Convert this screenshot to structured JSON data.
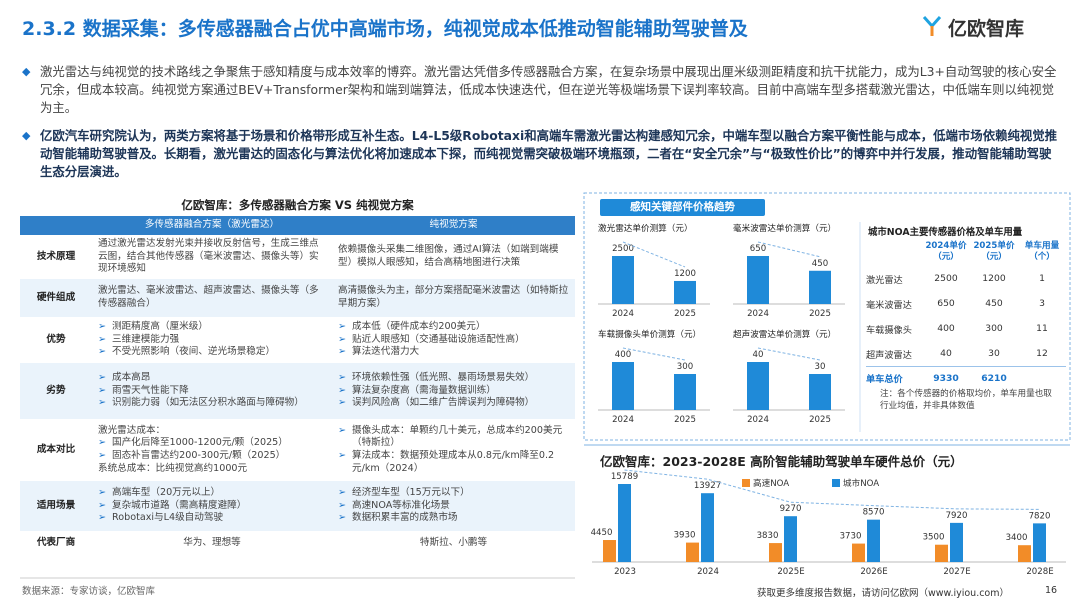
{
  "header": {
    "title": "2.3.2 数据采集：多传感器融合占优中高端市场，纯视觉成本低推动智能辅助驾驶普及",
    "logo": "亿欧智库"
  },
  "bullets": [
    "激光雷达与纯视觉的技术路线之争聚焦于感知精度与成本效率的博弈。激光雷达凭借多传感器融合方案，在复杂场景中展现出厘米级测距精度和抗干扰能力，成为L3+自动驾驶的核心安全冗余，但成本较高。纯视觉方案通过BEV+Transformer架构和端到端算法，低成本快速迭代，但在逆光等极端场景下误判率较高。目前中高端车型多搭载激光雷达，中低端车则以纯视觉为主。",
    "亿欧汽车研究院认为，两类方案将基于场景和价格带形成互补生态。L4-L5级Robotaxi和高端车需激光雷达构建感知冗余，中端车型以融合方案平衡性能与成本，低端市场依赖纯视觉推动智能辅助驾驶普及。长期看，激光雷达的固态化与算法优化将加速成本下探，而纯视觉需突破极端环境瓶颈，二者在“安全冗余”与“极致性价比”的博弈中并行发展，推动智能辅助驾驶生态分层演进。"
  ],
  "table": {
    "title": "亿欧智库：多传感器融合方案 VS 纯视觉方案",
    "columns": [
      "多传感器融合方案（激光雷达）",
      "纯视觉方案"
    ],
    "rows": [
      {
        "label": "技术原理",
        "cells": [
          "通过激光雷达发射光束并接收反射信号，生成三维点云图，结合其他传感器（毫米波雷达、摄像头等）实现环境感知",
          "依赖摄像头采集二维图像，通过AI算法（如端到端模型）模拟人眼感知，结合高精地图进行决策"
        ]
      },
      {
        "label": "硬件组成",
        "cells": [
          "激光雷达、毫米波雷达、超声波雷达、摄像头等（多传感器融合）",
          "高清摄像头为主，部分方案搭配毫米波雷达（如特斯拉早期方案）"
        ]
      },
      {
        "label": "优势",
        "cells": [
          [
            "测距精度高（厘米级）",
            "三维建模能力强",
            "不受光照影响（夜间、逆光场景稳定）"
          ],
          [
            "成本低（硬件成本约200美元）",
            "贴近人眼感知（交通基础设施适配性高）",
            "算法迭代潜力大"
          ]
        ]
      },
      {
        "label": "劣势",
        "cells": [
          [
            "成本高昂",
            "雨雪天气性能下降",
            "识别能力弱（如无法区分积水路面与障碍物）"
          ],
          [
            "环境依赖性强（低光照、暴雨场景易失效）",
            "算法复杂度高（需海量数据训练）",
            "误判风险高（如二维广告牌误判为障碍物）"
          ]
        ]
      },
      {
        "label": "成本对比",
        "cells": [
          {
            "intro": "激光雷达成本：",
            "items": [
              "国产化后降至1000-1200元/颗（2025）",
              "固态补盲雷达约200-300元/颗（2025）"
            ],
            "tail": "系统总成本：比纯视觉高约1000元"
          },
          [
            "摄像头成本：单颗约几十美元，总成本约200美元（特斯拉）",
            "算法成本：数据预处理成本从0.8元/km降至0.2元/km（2024）"
          ]
        ]
      },
      {
        "label": "适用场景",
        "cells": [
          [
            "高端车型（20万元以上）",
            "复杂城市道路（需高精度避障）",
            "Robotaxi与L4级自动驾驶"
          ],
          [
            "经济型车型（15万元以下）",
            "高速NOA等标准化场景",
            "数据积累丰富的成熟市场"
          ]
        ]
      },
      {
        "label": "代表厂商",
        "cells": [
          "华为、理想等",
          "特斯拉、小鹏等"
        ]
      }
    ]
  },
  "price_panel": {
    "title": "感知关键部件价格趋势"
  },
  "chart_data": [
    {
      "type": "bar",
      "title": "激光雷达单价测算（元）",
      "categories": [
        "2024",
        "2025"
      ],
      "values": [
        2500,
        1200
      ],
      "color": "#1f8ad8"
    },
    {
      "type": "bar",
      "title": "毫米波雷达单价测算（元）",
      "categories": [
        "2024",
        "2025"
      ],
      "values": [
        650,
        450
      ],
      "color": "#1f8ad8"
    },
    {
      "type": "bar",
      "title": "车载摄像头单价测算（元）",
      "categories": [
        "2024",
        "2025"
      ],
      "values": [
        400,
        300
      ],
      "color": "#1f8ad8"
    },
    {
      "type": "bar",
      "title": "超声波雷达单价测算（元）",
      "categories": [
        "2024",
        "2025"
      ],
      "values": [
        40,
        30
      ],
      "color": "#1f8ad8"
    },
    {
      "type": "grouped_bar",
      "title": "亿欧智库：2023-2028E 高阶智能辅助驾驶单车硬件总价（元）",
      "categories": [
        "2023",
        "2024",
        "2025E",
        "2026E",
        "2027E",
        "2028E"
      ],
      "series": [
        {
          "name": "高速NOA",
          "color": "#f28c28",
          "values": [
            4450,
            3930,
            3830,
            3730,
            3500,
            3400
          ]
        },
        {
          "name": "城市NOA",
          "color": "#1f8ad8",
          "values": [
            15789,
            13927,
            9270,
            8570,
            7920,
            7820
          ]
        }
      ]
    }
  ],
  "noa_table": {
    "title": "城市NOA主要传感器价格及单车用量",
    "columns": [
      "2024单价（元）",
      "2025单价（元）",
      "单车用量（个）"
    ],
    "rows": [
      {
        "label": "激光雷达",
        "values": [
          2500,
          1200,
          1
        ]
      },
      {
        "label": "毫米波雷达",
        "values": [
          650,
          450,
          3
        ]
      },
      {
        "label": "车载摄像头",
        "values": [
          400,
          300,
          11
        ]
      },
      {
        "label": "超声波雷达",
        "values": [
          40,
          30,
          12
        ]
      }
    ],
    "total": {
      "label": "单车总价",
      "values": [
        9330,
        6210
      ]
    },
    "note": "注：各个传感器的价格取均价，单车用量也取行业均值，并非具体数值"
  },
  "footer": {
    "source": "数据来源：专家访谈，亿欧智库",
    "visit": "获取更多维度报告数据，请访问亿欧网（www.iyiou.com）",
    "page": "16"
  }
}
